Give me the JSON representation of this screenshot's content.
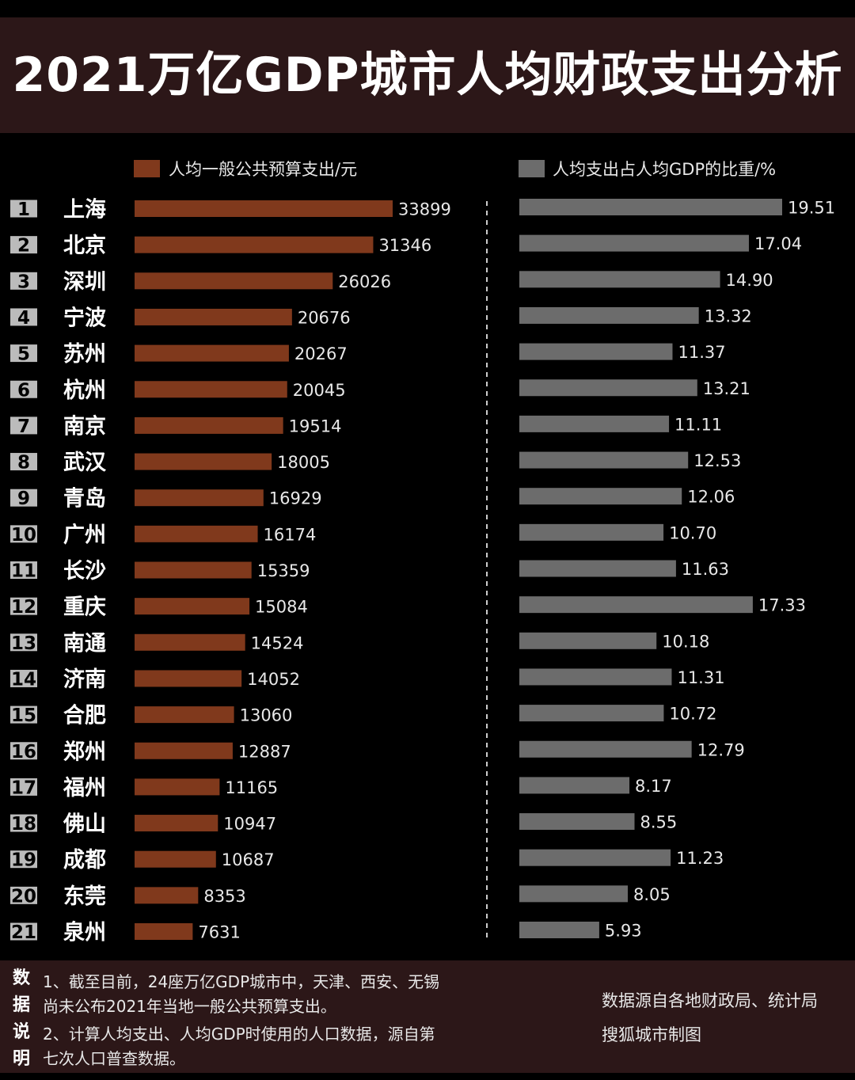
{
  "title": "2021万亿GDP城市人均财政支出分析",
  "colors": {
    "background": "#000000",
    "band": "#2c1718",
    "bar_left": "#80391c",
    "bar_right": "#6c6c6c",
    "rank_box": "#bbbbbb"
  },
  "chart_data": [
    {
      "type": "bar",
      "orientation": "horizontal",
      "legend": "人均一般公共预算支出/元",
      "ranks": [
        "1",
        "2",
        "3",
        "4",
        "5",
        "6",
        "7",
        "8",
        "9",
        "10",
        "11",
        "12",
        "13",
        "14",
        "15",
        "16",
        "17",
        "18",
        "19",
        "20",
        "21"
      ],
      "categories": [
        "上海",
        "北京",
        "深圳",
        "宁波",
        "苏州",
        "杭州",
        "南京",
        "武汉",
        "青岛",
        "广州",
        "长沙",
        "重庆",
        "南通",
        "济南",
        "合肥",
        "郑州",
        "福州",
        "佛山",
        "成都",
        "东莞",
        "泉州"
      ],
      "values": [
        33899,
        31346,
        26026,
        20676,
        20267,
        20045,
        19514,
        18005,
        16929,
        16174,
        15359,
        15084,
        14524,
        14052,
        13060,
        12887,
        11165,
        10947,
        10687,
        8353,
        7631
      ],
      "labels": [
        "33899",
        "31346",
        "26026",
        "20676",
        "20267",
        "20045",
        "19514",
        "18005",
        "16929",
        "16174",
        "15359",
        "15084",
        "14524",
        "14052",
        "13060",
        "12887",
        "11165",
        "10947",
        "10687",
        "8353",
        "7631"
      ],
      "xlim": [
        0,
        33899
      ]
    },
    {
      "type": "bar",
      "orientation": "horizontal",
      "legend": "人均支出占人均GDP的比重/%",
      "categories": [
        "上海",
        "北京",
        "深圳",
        "宁波",
        "苏州",
        "杭州",
        "南京",
        "武汉",
        "青岛",
        "广州",
        "长沙",
        "重庆",
        "南通",
        "济南",
        "合肥",
        "郑州",
        "福州",
        "佛山",
        "成都",
        "东莞",
        "泉州"
      ],
      "values": [
        19.51,
        17.04,
        14.9,
        13.32,
        11.37,
        13.21,
        11.11,
        12.53,
        12.06,
        10.7,
        11.63,
        17.33,
        10.18,
        11.31,
        10.72,
        12.79,
        8.17,
        8.55,
        11.23,
        8.05,
        5.93
      ],
      "labels": [
        "19.51",
        "17.04",
        "14.90",
        "13.32",
        "11.37",
        "13.21",
        "11.11",
        "12.53",
        "12.06",
        "10.70",
        "11.63",
        "17.33",
        "10.18",
        "11.31",
        "10.72",
        "12.79",
        "8.17",
        "8.55",
        "11.23",
        "8.05",
        "5.93"
      ],
      "xlim": [
        0,
        19.51
      ]
    }
  ],
  "notes": {
    "label": [
      "数",
      "据",
      "说",
      "明"
    ],
    "lines": [
      "1、截至目前，24座万亿GDP城市中，天津、西安、无锡",
      "尚未公布2021年当地一般公共预算支出。",
      "2、计算人均支出、人均GDP时使用的人口数据，源自第",
      "七次人口普查数据。"
    ],
    "credits": [
      "数据源自各地财政局、统计局",
      "搜狐城市制图"
    ]
  }
}
